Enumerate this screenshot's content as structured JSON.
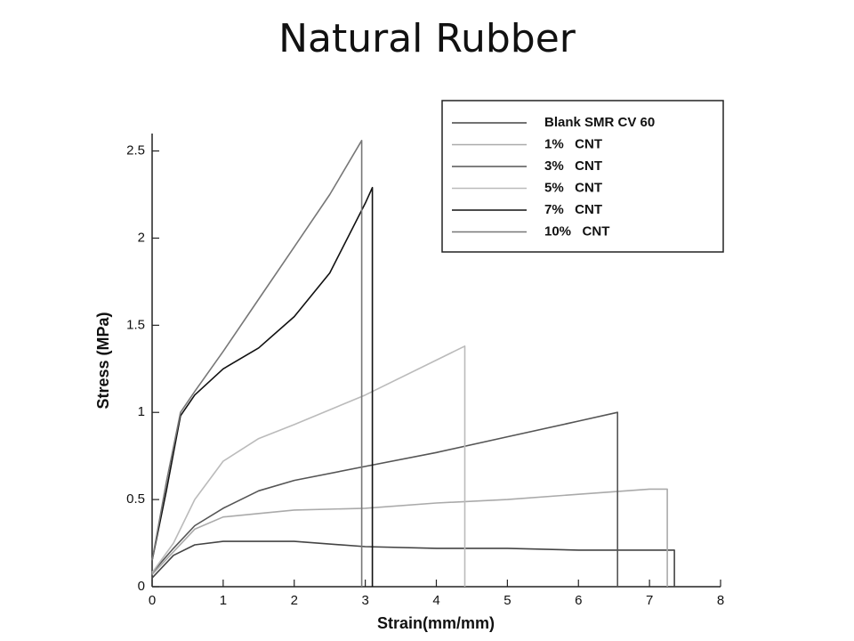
{
  "chart_data": {
    "type": "line",
    "title": "Natural Rubber",
    "x_label": "Strain(mm/mm)",
    "y_label": "Stress (MPa)",
    "xlim": [
      0,
      8
    ],
    "xticks": [
      0,
      1,
      2,
      3,
      4,
      5,
      6,
      7,
      8
    ],
    "ylim": [
      0,
      2.6
    ],
    "yticks": [
      0,
      0.5,
      1,
      1.5,
      2,
      2.5
    ],
    "legend": "upper right",
    "series": [
      {
        "name": "Blank SMR CV 60",
        "color": "#444444",
        "x": [
          0,
          0.3,
          0.6,
          1,
          1.5,
          2,
          3,
          4,
          5,
          6,
          7,
          7.35,
          7.35
        ],
        "values": [
          0.05,
          0.18,
          0.24,
          0.26,
          0.26,
          0.26,
          0.23,
          0.22,
          0.22,
          0.21,
          0.21,
          0.21,
          0
        ]
      },
      {
        "name": "1%   CNT",
        "color": "#aaaaaa",
        "x": [
          0,
          0.3,
          0.6,
          1,
          1.5,
          2,
          3,
          4,
          5,
          6,
          7,
          7.25,
          7.25
        ],
        "values": [
          0.07,
          0.2,
          0.33,
          0.4,
          0.42,
          0.44,
          0.45,
          0.48,
          0.5,
          0.53,
          0.56,
          0.56,
          0
        ]
      },
      {
        "name": "3%   CNT",
        "color": "#555555",
        "x": [
          0,
          0.3,
          0.6,
          1,
          1.5,
          2,
          3,
          4,
          5,
          6,
          6.55,
          6.55
        ],
        "values": [
          0.08,
          0.22,
          0.35,
          0.45,
          0.55,
          0.61,
          0.69,
          0.77,
          0.86,
          0.95,
          1.0,
          0
        ]
      },
      {
        "name": "5%   CNT",
        "color": "#bbbbbb",
        "x": [
          0,
          0.3,
          0.6,
          1,
          1.5,
          2,
          3,
          4,
          4.4,
          4.4
        ],
        "values": [
          0.08,
          0.25,
          0.5,
          0.72,
          0.85,
          0.93,
          1.1,
          1.3,
          1.38,
          0
        ]
      },
      {
        "name": "7%   CNT",
        "color": "#111111",
        "x": [
          0,
          0.2,
          0.4,
          0.6,
          1,
          1.5,
          2,
          2.5,
          3,
          3.1,
          3.1
        ],
        "values": [
          0.15,
          0.55,
          0.98,
          1.1,
          1.25,
          1.37,
          1.55,
          1.8,
          2.2,
          2.29,
          0
        ]
      },
      {
        "name": "10%   CNT",
        "color": "#777777",
        "x": [
          0,
          0.2,
          0.4,
          0.6,
          1,
          1.5,
          2,
          2.5,
          2.95,
          2.95
        ],
        "values": [
          0.15,
          0.6,
          1.0,
          1.12,
          1.35,
          1.65,
          1.95,
          2.25,
          2.56,
          0
        ]
      }
    ]
  }
}
